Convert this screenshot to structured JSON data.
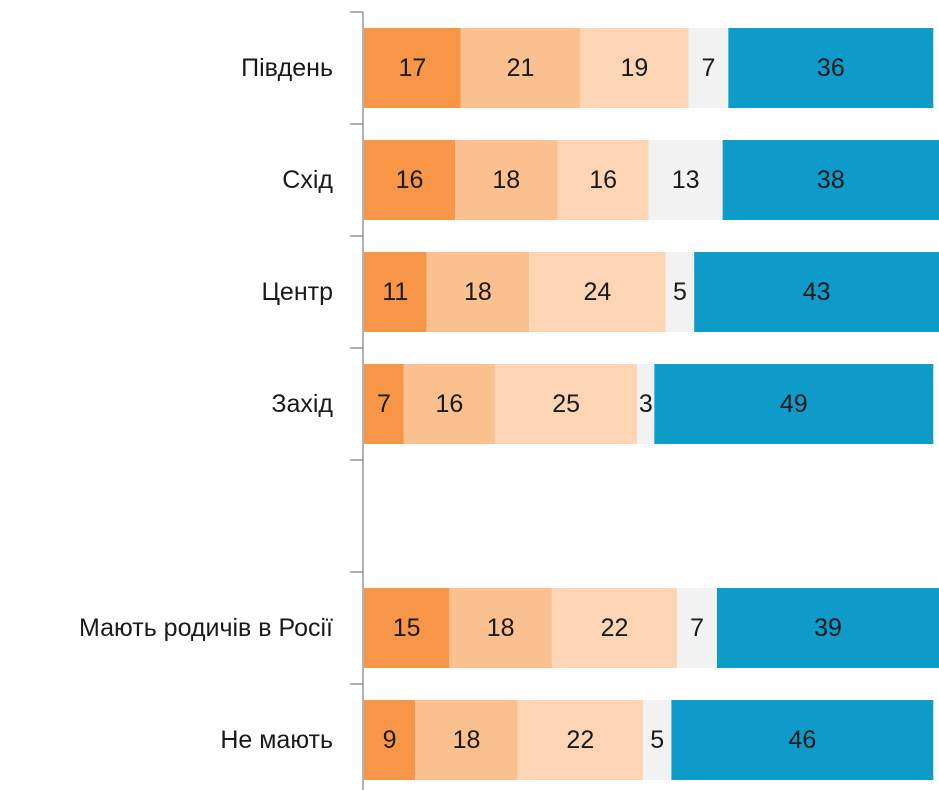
{
  "chart_data": {
    "type": "stacked-bar-horizontal",
    "categories": [
      "Південь",
      "Схід",
      "Центр",
      "Захід",
      null,
      "Мають родичів в Росії",
      "Не мають"
    ],
    "series": [
      {
        "color": "#f79646",
        "values": [
          17,
          16,
          11,
          7,
          null,
          15,
          9
        ]
      },
      {
        "color": "#fac090",
        "values": [
          21,
          18,
          18,
          16,
          null,
          18,
          18
        ]
      },
      {
        "color": "#fcd5b5",
        "values": [
          19,
          16,
          24,
          25,
          null,
          22,
          22
        ]
      },
      {
        "color": "#f2f2f2",
        "values": [
          7,
          13,
          5,
          3,
          null,
          7,
          5
        ]
      },
      {
        "color": "#0e9bc9",
        "values": [
          36,
          38,
          43,
          49,
          null,
          39,
          46
        ]
      }
    ],
    "xlim": [
      0,
      101
    ]
  }
}
